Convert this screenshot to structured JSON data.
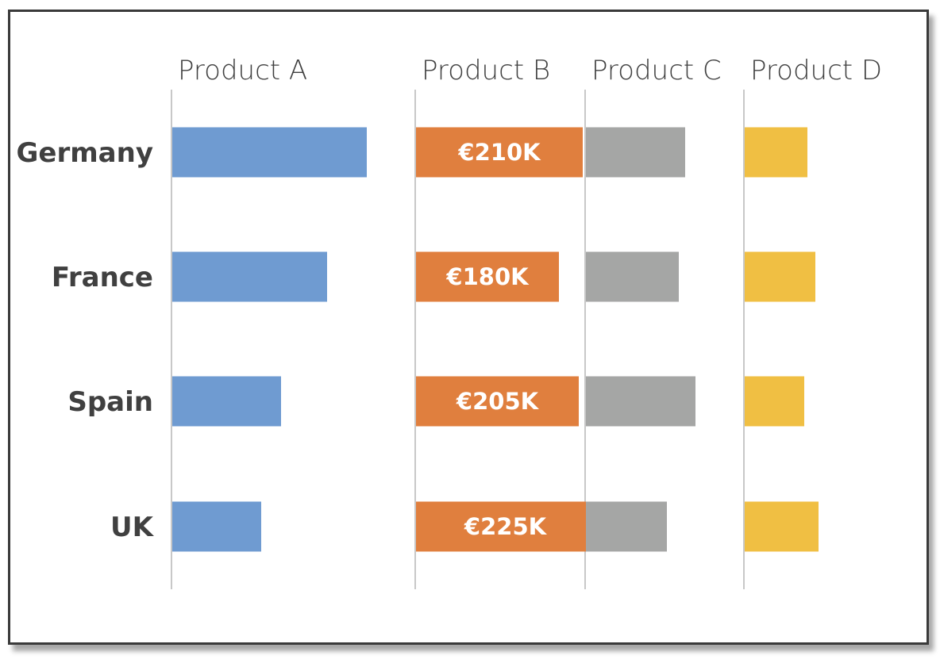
{
  "chart_data": {
    "type": "bar",
    "orientation": "horizontal",
    "layout": "small-multiples",
    "categories": [
      "Germany",
      "France",
      "Spain",
      "UK"
    ],
    "series": [
      {
        "name": "Product A",
        "values": [
          245,
          195,
          137,
          112
        ],
        "color": "#6f9bd1",
        "labels_shown": false
      },
      {
        "name": "Product B",
        "values": [
          210,
          180,
          205,
          225
        ],
        "color": "#e07f3e",
        "labels_shown": true,
        "labels": [
          "€210K",
          "€180K",
          "€205K",
          "€225K"
        ]
      },
      {
        "name": "Product C",
        "values": [
          125,
          117,
          138,
          102
        ],
        "color": "#a5a6a5",
        "labels_shown": false
      },
      {
        "name": "Product D",
        "values": [
          79,
          89,
          75,
          93
        ],
        "color": "#f0bf43",
        "labels_shown": false
      }
    ],
    "xlim": [
      0,
      300
    ],
    "grid": false,
    "legend": "none",
    "title": "",
    "xlabel": "",
    "ylabel": ""
  }
}
